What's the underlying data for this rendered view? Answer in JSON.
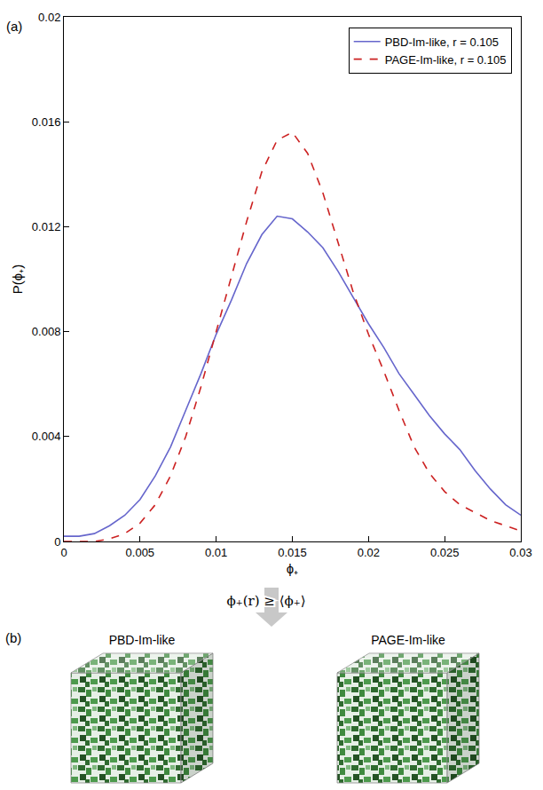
{
  "chart_data": {
    "type": "line",
    "panel_label": "(a)",
    "x_label": "ϕ₊",
    "y_label": "P(ϕ₊)",
    "x": [
      0,
      0.001,
      0.002,
      0.003,
      0.004,
      0.005,
      0.006,
      0.007,
      0.008,
      0.009,
      0.01,
      0.011,
      0.012,
      0.013,
      0.014,
      0.015,
      0.016,
      0.017,
      0.018,
      0.019,
      0.02,
      0.021,
      0.022,
      0.023,
      0.024,
      0.025,
      0.026,
      0.027,
      0.028,
      0.029,
      0.03
    ],
    "series": [
      {
        "name": "PBD-Im-like, r = 0.105",
        "color": "#6666cc",
        "line_style": "solid",
        "values": [
          0.0002,
          0.0002,
          0.0003,
          0.0006,
          0.001,
          0.0016,
          0.0025,
          0.0036,
          0.005,
          0.0064,
          0.0079,
          0.0092,
          0.0106,
          0.0117,
          0.0124,
          0.0123,
          0.0118,
          0.0112,
          0.0103,
          0.0093,
          0.0083,
          0.0074,
          0.0064,
          0.0056,
          0.0048,
          0.0041,
          0.0035,
          0.0027,
          0.002,
          0.0014,
          0.001
        ]
      },
      {
        "name": "PAGE-Im-like, r = 0.105",
        "color": "#cc2222",
        "line_style": "dashed",
        "values": [
          0,
          0,
          0,
          0.0001,
          0.0003,
          0.0007,
          0.0014,
          0.0025,
          0.004,
          0.0059,
          0.008,
          0.0101,
          0.0122,
          0.0141,
          0.0153,
          0.0156,
          0.0148,
          0.0133,
          0.0114,
          0.0095,
          0.0079,
          0.0065,
          0.005,
          0.0036,
          0.0026,
          0.0019,
          0.0014,
          0.0011,
          0.0008,
          0.0006,
          0.0004
        ]
      }
    ],
    "xlim": [
      0,
      0.03
    ],
    "xticks": [
      0,
      0.005,
      0.01,
      0.015,
      0.02,
      0.025,
      0.03
    ],
    "ylim": [
      0,
      0.02
    ],
    "yticks": [
      0,
      0.004,
      0.008,
      0.012,
      0.016,
      0.02
    ],
    "grid": false,
    "legend": "top-right"
  },
  "arrow_label": "ϕ₊(r) ≥ ⟨ϕ₊⟩",
  "panel_b": {
    "label": "(b)",
    "titles": [
      "PBD-Im-like",
      "PAGE-Im-like"
    ]
  }
}
